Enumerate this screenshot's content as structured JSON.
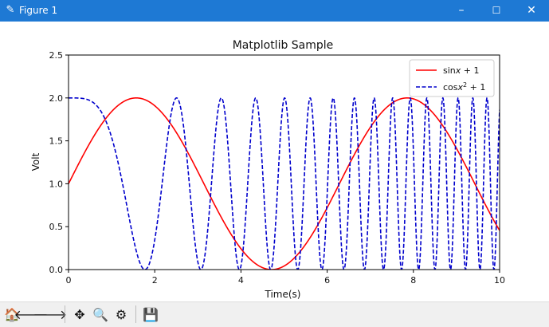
{
  "window": {
    "title": "Figure 1",
    "controls": {
      "minimize": "–",
      "maximize": "☐",
      "close": "✕"
    },
    "accent": "#1e79d4"
  },
  "toolbar": {
    "buttons": [
      {
        "name": "home",
        "icon": "home-icon",
        "glyph": "🏠"
      },
      {
        "name": "back",
        "icon": "arrow-left-icon",
        "glyph": "🡐"
      },
      {
        "name": "forward",
        "icon": "arrow-right-icon",
        "glyph": "🡒"
      },
      {
        "name": "pan",
        "icon": "pan-icon",
        "glyph": "✥"
      },
      {
        "name": "zoom",
        "icon": "zoom-icon",
        "glyph": "🔍"
      },
      {
        "name": "configure-subplots",
        "icon": "sliders-icon",
        "glyph": "⚙"
      },
      {
        "name": "save",
        "icon": "save-icon",
        "glyph": "💾"
      }
    ]
  },
  "chart_data": {
    "type": "line",
    "title": "Matplotlib Sample",
    "xlabel": "Time(s)",
    "ylabel": "Volt",
    "xlim": [
      0,
      10
    ],
    "ylim": [
      0,
      2.5
    ],
    "xticks": [
      0,
      2,
      4,
      6,
      8,
      10
    ],
    "yticks": [
      0.0,
      0.5,
      1.0,
      1.5,
      2.0,
      2.5
    ],
    "ytick_labels": [
      "0.0",
      "0.5",
      "1.0",
      "1.5",
      "2.0",
      "2.5"
    ],
    "grid": false,
    "legend_position": "top-right",
    "series": [
      {
        "name": "sin x + 1",
        "legend_main": "sin",
        "legend_var": "x",
        "legend_sup": "",
        "legend_tail": " + 1",
        "formula": "sin(x)+1",
        "color": "#ff0000",
        "style": "solid"
      },
      {
        "name": "cos x² + 1",
        "legend_main": "cos",
        "legend_var": "x",
        "legend_sup": "2",
        "legend_tail": " + 1",
        "formula": "cos(x^2)+1",
        "color": "#0000cc",
        "style": "dashed"
      }
    ]
  }
}
